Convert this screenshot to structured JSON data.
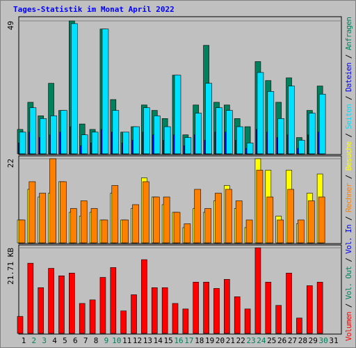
{
  "title": "Tages-Statistik im Monat April 2022",
  "legend_separator": " / ",
  "chart_data": [
    {
      "type": "bar",
      "ylim": [
        0,
        49
      ],
      "yticks": [
        49
      ],
      "series": [
        {
          "name": "Anfragen",
          "color": "#00805c",
          "values": [
            9,
            19,
            14,
            26,
            16,
            49,
            11,
            9,
            46,
            20,
            8,
            10,
            18,
            16,
            13,
            29,
            7,
            18,
            40,
            19,
            18,
            13,
            10,
            34,
            27,
            19,
            28,
            6,
            16,
            25,
            0
          ]
        },
        {
          "name": "Dateien",
          "color": "#0000ff",
          "values": [
            4,
            8,
            6,
            7,
            8,
            10,
            3,
            4,
            9,
            8,
            4,
            5,
            8,
            7,
            5,
            7,
            3,
            7,
            5,
            8,
            8,
            5,
            2,
            9,
            8,
            6,
            7,
            2,
            7,
            8,
            0
          ]
        },
        {
          "name": "Seiten",
          "color": "#00e0ff",
          "values": [
            8,
            17,
            13,
            14,
            16,
            48,
            7,
            8,
            46,
            16,
            8,
            10,
            17,
            14,
            10,
            29,
            6,
            15,
            26,
            17,
            16,
            10,
            4,
            30,
            23,
            13,
            25,
            5,
            15,
            22,
            0
          ]
        }
      ]
    },
    {
      "type": "bar",
      "ylim": [
        0,
        22
      ],
      "yticks": [
        22
      ],
      "series": [
        {
          "name": "Besuche",
          "color": "#ffff00",
          "values": [
            6,
            14,
            12,
            13,
            16,
            8,
            7,
            8,
            6,
            13,
            6,
            9,
            17,
            12,
            10,
            8,
            4,
            9,
            8,
            11,
            15,
            9,
            4,
            22,
            19,
            7,
            19,
            5,
            13,
            18,
            0
          ]
        },
        {
          "name": "Rechner",
          "color": "#ff8000",
          "values": [
            6,
            16,
            13,
            22,
            16,
            9,
            11,
            9,
            6,
            15,
            6,
            10,
            16,
            12,
            12,
            8,
            5,
            14,
            9,
            13,
            14,
            11,
            6,
            19,
            12,
            6,
            14,
            6,
            11,
            12,
            0
          ]
        }
      ]
    },
    {
      "type": "bar",
      "ylim": [
        0,
        21.71
      ],
      "yticks": [
        {
          "value": 21.71,
          "label": "21.71 KB"
        }
      ],
      "categories": [
        "1",
        "2",
        "3",
        "4",
        "5",
        "6",
        "7",
        "8",
        "9",
        "10",
        "11",
        "12",
        "13",
        "14",
        "15",
        "16",
        "17",
        "18",
        "19",
        "20",
        "21",
        "22",
        "23",
        "24",
        "25",
        "26",
        "27",
        "28",
        "29",
        "30",
        "31"
      ],
      "highlighted": [
        1,
        2,
        8,
        9,
        15,
        16,
        22,
        23,
        29
      ],
      "highlight_color": "#00805c",
      "series": [
        {
          "name": "Volumen",
          "color": "#ff0000",
          "values": [
            4.3,
            17.8,
            11.6,
            16.5,
            14.6,
            15.3,
            7.6,
            8.5,
            14.2,
            16.7,
            5.7,
            9.8,
            18.7,
            11.6,
            11.6,
            7.6,
            6.2,
            13,
            13,
            11.4,
            13.7,
            9.3,
            6.2,
            21.7,
            13,
            7.1,
            15.3,
            3.9,
            12.1,
            13,
            0
          ]
        }
      ],
      "extra_legend": [
        {
          "name": "Vol. In",
          "color": "#0000ff"
        },
        {
          "name": "Vol. Out",
          "color": "#00805c"
        }
      ]
    }
  ]
}
